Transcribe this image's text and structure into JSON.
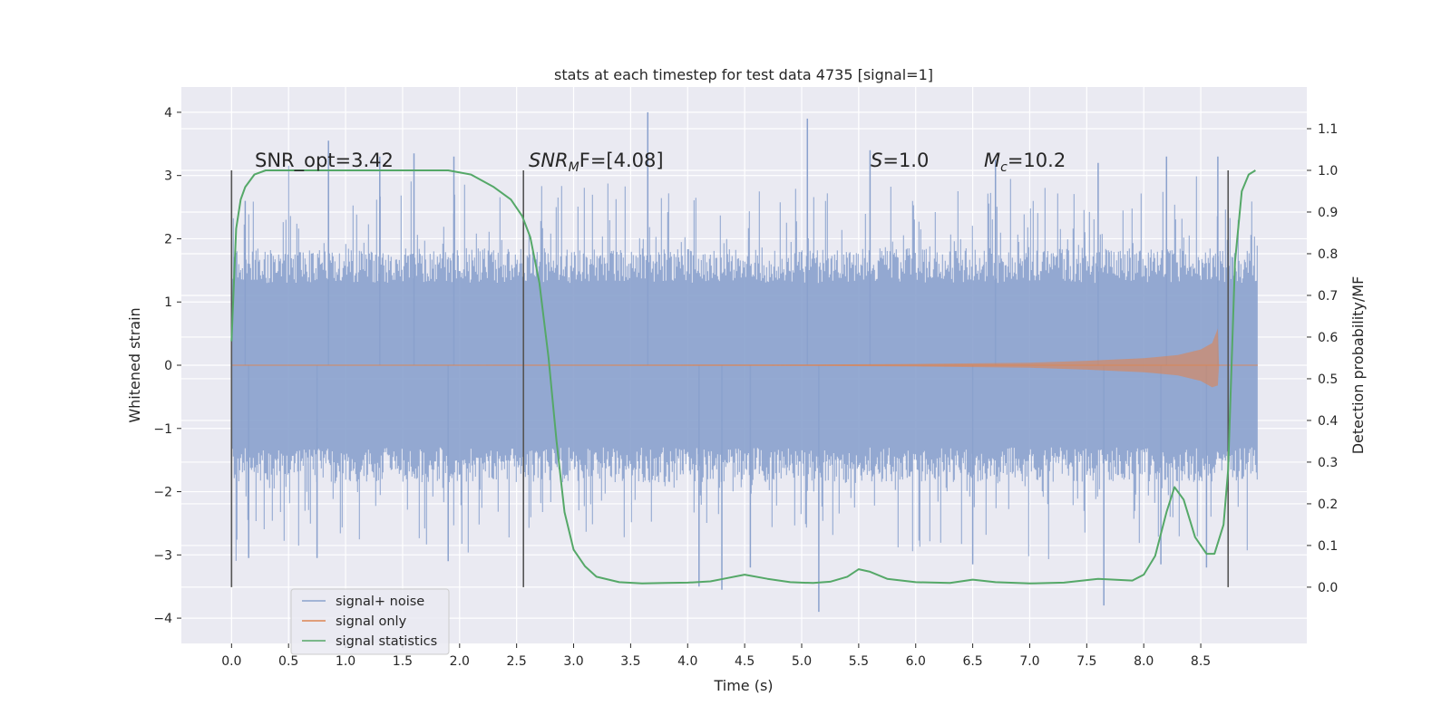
{
  "chart_data": {
    "type": "line",
    "title": "stats at each timestep for test data 4735 [signal=1]",
    "xlabel": "Time (s)",
    "ylabel": "Whitened strain",
    "y2label": "Detection probability/MF",
    "xlim": [
      -0.44,
      9.43
    ],
    "ylim": [
      -4.4,
      4.4
    ],
    "y2lim": [
      -0.135,
      1.2
    ],
    "xticks": [
      "0.0",
      "0.5",
      "1.0",
      "1.5",
      "2.0",
      "2.5",
      "3.0",
      "3.5",
      "4.0",
      "4.5",
      "5.0",
      "5.5",
      "6.0",
      "6.5",
      "7.0",
      "7.5",
      "8.0",
      "8.5"
    ],
    "yticks": [
      "4",
      "3",
      "2",
      "1",
      "0",
      "−1",
      "−2",
      "−3",
      "−4"
    ],
    "y2ticks": [
      "1.1",
      "1.0",
      "0.9",
      "0.8",
      "0.7",
      "0.6",
      "0.5",
      "0.4",
      "0.3",
      "0.2",
      "0.1",
      "0.0"
    ],
    "grid": true,
    "legend_position": "lower-left",
    "colors": {
      "plot_bg": "#eaeaf2",
      "noise": "#8aa1cd",
      "signal": "#dd8452",
      "stats": "#55a868",
      "vline": "#555555",
      "text": "#262626"
    },
    "annotations": {
      "snr_opt": "SNR_opt=3.42",
      "snr_mf_main": "SNR",
      "snr_mf_sub": "M",
      "snr_mf_rest": "F=[4.08]",
      "s_sym": "S",
      "s_val": "=1.0",
      "mc_main": "M",
      "mc_sub": "c",
      "mc_val": "=10.2"
    },
    "vlines_x": [
      0.0,
      2.56,
      8.74
    ],
    "series": [
      {
        "name": "signal+ noise",
        "axis": "left",
        "envelope_x": [
          0.0,
          9.0
        ],
        "typical_amplitude": 1.3,
        "peak_upper": [
          [
            0.12,
            2.6
          ],
          [
            0.85,
            3.55
          ],
          [
            1.3,
            3.3
          ],
          [
            1.6,
            3.35
          ],
          [
            1.95,
            3.3
          ],
          [
            3.65,
            4.0
          ],
          [
            5.05,
            3.9
          ],
          [
            5.6,
            3.4
          ],
          [
            6.7,
            3.25
          ],
          [
            7.6,
            3.2
          ],
          [
            8.2,
            3.3
          ],
          [
            8.65,
            3.3
          ]
        ],
        "peak_lower": [
          [
            0.15,
            -3.05
          ],
          [
            0.75,
            -3.05
          ],
          [
            1.9,
            -3.1
          ],
          [
            4.1,
            -3.5
          ],
          [
            4.3,
            -3.55
          ],
          [
            4.55,
            -3.2
          ],
          [
            5.15,
            -3.9
          ],
          [
            6.5,
            -3.15
          ],
          [
            7.65,
            -3.8
          ],
          [
            8.15,
            -3.15
          ],
          [
            8.55,
            -3.2
          ]
        ]
      },
      {
        "name": "signal only",
        "axis": "left",
        "x": [
          0.0,
          5.0,
          6.0,
          7.0,
          7.5,
          8.0,
          8.3,
          8.5,
          8.6,
          8.65,
          8.66,
          9.0
        ],
        "envelope": [
          0.0,
          0.01,
          0.02,
          0.04,
          0.07,
          0.11,
          0.16,
          0.25,
          0.35,
          0.58,
          0.0,
          0.0
        ]
      },
      {
        "name": "signal statistics",
        "axis": "right",
        "x": [
          0.0,
          0.04,
          0.08,
          0.12,
          0.2,
          0.3,
          0.5,
          1.0,
          1.5,
          1.9,
          2.1,
          2.3,
          2.45,
          2.55,
          2.62,
          2.7,
          2.78,
          2.85,
          2.92,
          3.0,
          3.1,
          3.2,
          3.4,
          3.6,
          3.8,
          4.0,
          4.2,
          4.35,
          4.5,
          4.7,
          4.9,
          5.1,
          5.25,
          5.4,
          5.5,
          5.6,
          5.75,
          6.0,
          6.3,
          6.5,
          6.7,
          7.0,
          7.3,
          7.6,
          7.9,
          8.0,
          8.1,
          8.2,
          8.27,
          8.35,
          8.45,
          8.55,
          8.62,
          8.7,
          8.74,
          8.8,
          8.86,
          8.92,
          8.98
        ],
        "values": [
          0.59,
          0.86,
          0.93,
          0.96,
          0.99,
          1.0,
          1.0,
          1.0,
          1.0,
          1.0,
          0.99,
          0.96,
          0.93,
          0.89,
          0.84,
          0.73,
          0.55,
          0.35,
          0.18,
          0.09,
          0.05,
          0.025,
          0.012,
          0.009,
          0.01,
          0.011,
          0.014,
          0.022,
          0.03,
          0.02,
          0.012,
          0.01,
          0.013,
          0.025,
          0.043,
          0.037,
          0.02,
          0.012,
          0.01,
          0.018,
          0.012,
          0.009,
          0.011,
          0.02,
          0.016,
          0.03,
          0.075,
          0.18,
          0.24,
          0.21,
          0.12,
          0.08,
          0.08,
          0.15,
          0.28,
          0.78,
          0.95,
          0.99,
          1.0
        ]
      }
    ]
  }
}
